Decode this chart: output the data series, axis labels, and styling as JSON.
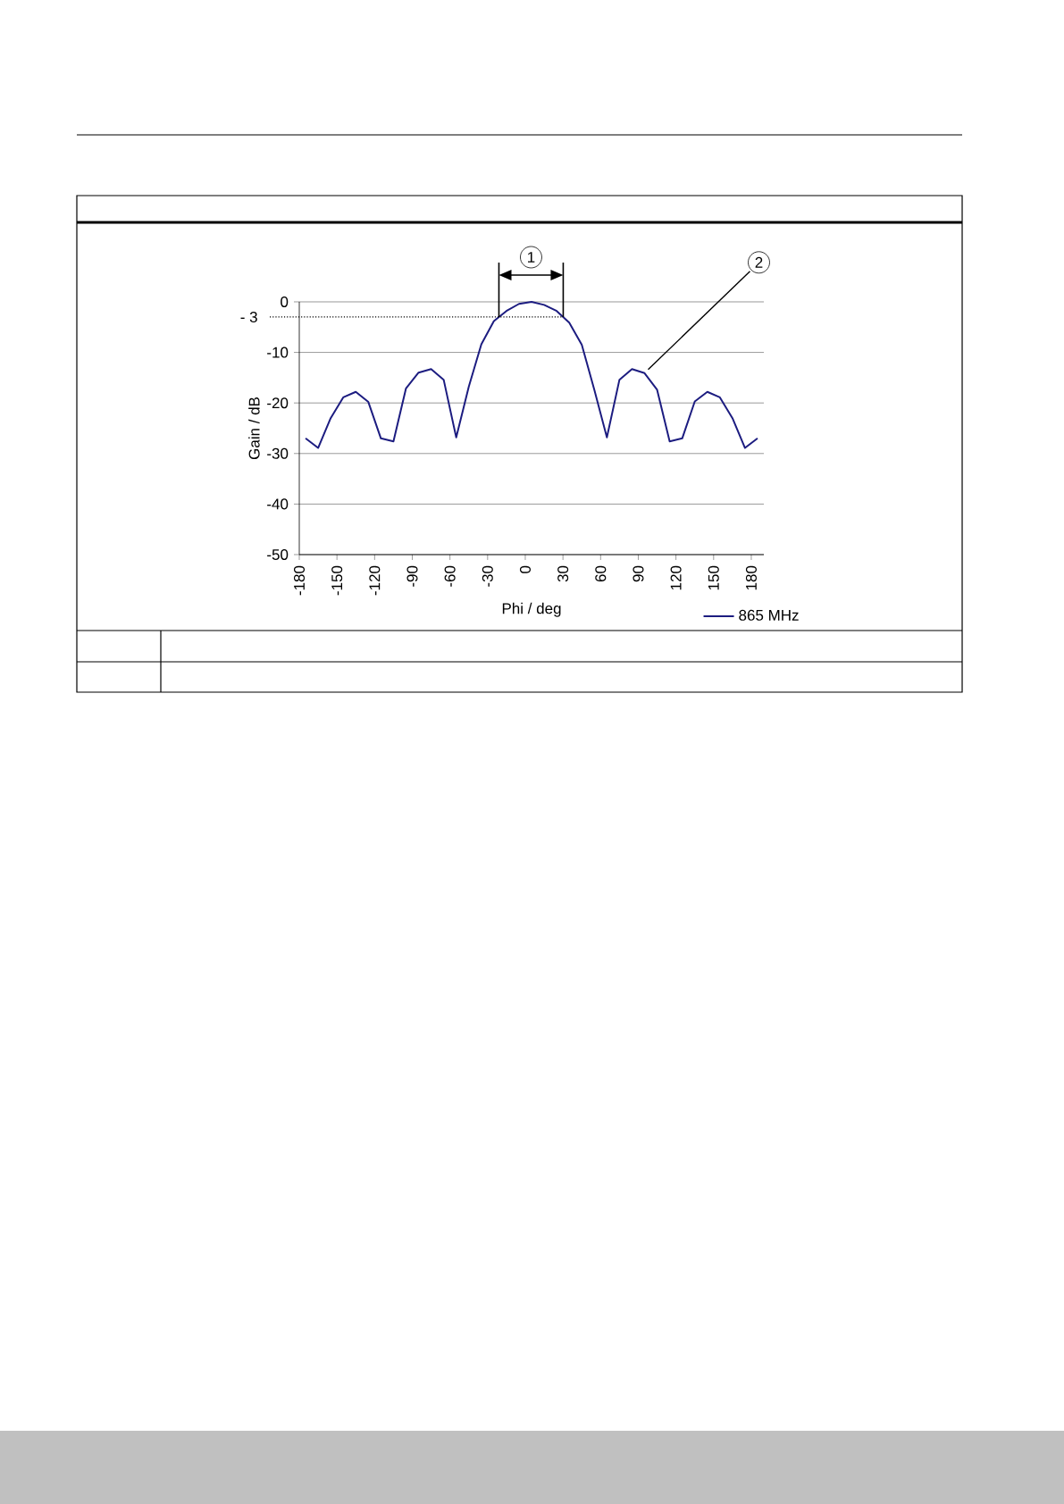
{
  "chart_data": {
    "type": "line",
    "xlabel": "Phi / deg",
    "ylabel": "Gain / dB",
    "x": [
      -175,
      -165,
      -155,
      -145,
      -135,
      -125,
      -115,
      -105,
      -95,
      -85,
      -75,
      -65,
      -55,
      -45,
      -35,
      -25,
      -15,
      -5,
      5,
      15,
      25,
      35,
      45,
      55,
      65,
      75,
      85,
      95,
      105,
      115,
      125,
      135,
      145,
      155,
      165,
      175,
      185
    ],
    "series": [
      {
        "name": "865 MHz",
        "color": "#1c1c80",
        "values": [
          -27,
          -28.9,
          -23,
          -18.9,
          -17.8,
          -19.8,
          -27,
          -27.6,
          -17.1,
          -14,
          -13.3,
          -15.4,
          -26.8,
          -16.8,
          -8.4,
          -3.8,
          -1.8,
          -0.4,
          0,
          -0.6,
          -1.8,
          -4.1,
          -8.5,
          -17.4,
          -26.8,
          -15.4,
          -13.3,
          -14.1,
          -17.4,
          -27.6,
          -27,
          -19.7,
          -17.8,
          -18.9,
          -23,
          -28.9,
          -27
        ]
      }
    ],
    "xlim": [
      -180,
      190
    ],
    "ylim": [
      -50,
      0
    ],
    "xticks": [
      -180,
      -150,
      -120,
      -90,
      -60,
      -30,
      0,
      30,
      60,
      90,
      120,
      150,
      180
    ],
    "yticks": [
      -50,
      -40,
      -30,
      -20,
      -10,
      0
    ],
    "grid": "y",
    "legend": "bottom right",
    "marker": "none",
    "line_style": "solid",
    "ref_lines": [
      {
        "axis": "y",
        "value": -3,
        "label": "- 3",
        "line_style": "dotted",
        "color": "#000000"
      }
    ],
    "annotations": [
      "1",
      {
        "text": "2",
        "x": 95,
        "y": -14.1
      }
    ]
  }
}
